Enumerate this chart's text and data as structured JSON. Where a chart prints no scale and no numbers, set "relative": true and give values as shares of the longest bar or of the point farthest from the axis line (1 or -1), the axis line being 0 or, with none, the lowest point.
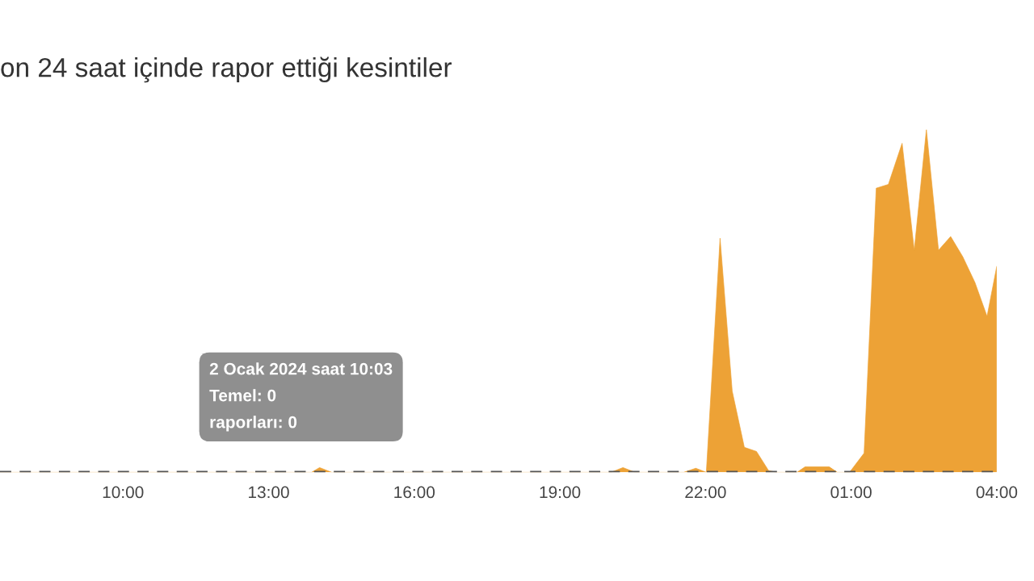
{
  "chart_data": {
    "type": "area",
    "title": "on 24 saat içinde rapor ettiği kesintiler",
    "relative": true,
    "xlim": [
      "2024-01-02T07:28",
      "2024-01-03T04:00"
    ],
    "xticks": [
      {
        "value": "2024-01-02T10:00",
        "label": "10:00"
      },
      {
        "value": "2024-01-02T13:00",
        "label": "13:00"
      },
      {
        "value": "2024-01-02T16:00",
        "label": "16:00"
      },
      {
        "value": "2024-01-02T19:00",
        "label": "19:00"
      },
      {
        "value": "2024-01-02T22:00",
        "label": "22:00"
      },
      {
        "value": "2024-01-03T01:00",
        "label": "01:00"
      },
      {
        "value": "2024-01-03T04:00",
        "label": "04:00"
      }
    ],
    "tick_labels": "x",
    "annotations": [
      "2 Ocak 2024 saat 10:03\nTemel: 0\nraporları: 0"
    ],
    "series": [
      {
        "color": "#eda236",
        "x": [
          "2024-01-02T07:28",
          "2024-01-02T13:53",
          "2024-01-02T14:03",
          "2024-01-02T14:18",
          "2024-01-02T20:03",
          "2024-01-02T20:18",
          "2024-01-02T20:33",
          "2024-01-02T21:33",
          "2024-01-02T21:48",
          "2024-01-02T22:01",
          "2024-01-02T22:18",
          "2024-01-02T22:33",
          "2024-01-02T22:48",
          "2024-01-02T23:03",
          "2024-01-02T23:18",
          "2024-01-02T23:28",
          "2024-01-02T23:53",
          "2024-01-03T00:03",
          "2024-01-03T00:33",
          "2024-01-03T00:43",
          "2024-01-03T00:58",
          "2024-01-03T01:16",
          "2024-01-03T01:31",
          "2024-01-03T01:46",
          "2024-01-03T02:03",
          "2024-01-03T02:18",
          "2024-01-03T02:33",
          "2024-01-03T02:48",
          "2024-01-03T03:03",
          "2024-01-03T03:18",
          "2024-01-03T03:33",
          "2024-01-03T03:48",
          "2024-01-03T04:00"
        ],
        "values": [
          0,
          0,
          0.014,
          0,
          0,
          0.014,
          0,
          0,
          0.012,
          0,
          0.683,
          0.237,
          0.073,
          0.061,
          0.005,
          0,
          0,
          0.016,
          0.016,
          0,
          0,
          0.056,
          0.829,
          0.84,
          0.96,
          0.648,
          1,
          0.648,
          0.688,
          0.629,
          0.554,
          0.455,
          0.601
        ]
      },
      {
        "type": "line",
        "color": "#555555",
        "line_style": "dashed",
        "x": [
          "2024-01-02T07:28",
          "2024-01-03T04:00"
        ],
        "values": [
          0,
          0
        ]
      }
    ]
  }
}
